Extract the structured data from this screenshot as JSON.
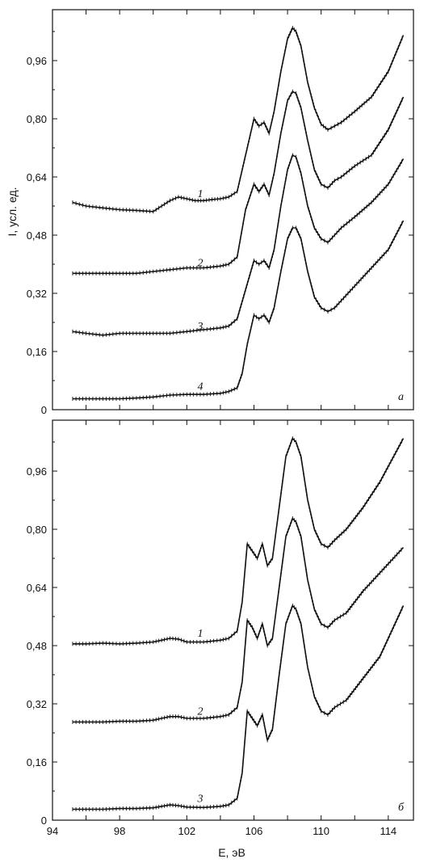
{
  "chart_data": [
    {
      "type": "line",
      "panel_label": "а",
      "ylabel": "I, усл. ед.",
      "xlim": [
        94,
        115.5
      ],
      "ylim": [
        0,
        1.1
      ],
      "yticks": [
        0,
        0.16,
        0.32,
        0.48,
        0.64,
        0.8,
        0.96
      ],
      "ytick_labels": [
        "0",
        "0,16",
        "0,32",
        "0,48",
        "0,64",
        "0,80",
        "0,96"
      ],
      "series": [
        {
          "label": "1",
          "label_pos": [
            102.8,
            0.585
          ],
          "x": [
            95.2,
            96,
            97,
            98,
            99,
            100,
            100.5,
            101,
            101.5,
            102,
            102.5,
            103,
            103.5,
            104,
            104.5,
            105,
            105.5,
            106,
            106.3,
            106.6,
            106.9,
            107.2,
            107.6,
            108,
            108.3,
            108.5,
            108.8,
            109.2,
            109.6,
            110,
            110.4,
            110.8,
            111.2,
            112,
            113,
            114,
            114.9
          ],
          "y": [
            0.57,
            0.56,
            0.555,
            0.55,
            0.548,
            0.545,
            0.56,
            0.575,
            0.585,
            0.58,
            0.575,
            0.575,
            0.578,
            0.58,
            0.585,
            0.6,
            0.7,
            0.8,
            0.78,
            0.79,
            0.76,
            0.82,
            0.93,
            1.02,
            1.05,
            1.04,
            1.0,
            0.9,
            0.83,
            0.785,
            0.77,
            0.78,
            0.79,
            0.82,
            0.86,
            0.93,
            1.03
          ]
        },
        {
          "label": "2",
          "label_pos": [
            102.8,
            0.395
          ],
          "x": [
            95.2,
            96,
            97,
            98,
            99,
            100,
            101,
            102,
            103,
            104,
            104.5,
            105,
            105.5,
            106,
            106.3,
            106.6,
            106.9,
            107.2,
            107.6,
            108,
            108.3,
            108.5,
            108.8,
            109.2,
            109.6,
            110,
            110.4,
            110.8,
            111.2,
            112,
            113,
            114,
            114.9
          ],
          "y": [
            0.375,
            0.375,
            0.375,
            0.375,
            0.375,
            0.38,
            0.385,
            0.39,
            0.39,
            0.395,
            0.4,
            0.42,
            0.55,
            0.62,
            0.6,
            0.62,
            0.59,
            0.65,
            0.76,
            0.85,
            0.875,
            0.87,
            0.83,
            0.74,
            0.66,
            0.62,
            0.61,
            0.63,
            0.64,
            0.67,
            0.7,
            0.77,
            0.86
          ]
        },
        {
          "label": "3",
          "label_pos": [
            102.8,
            0.22
          ],
          "x": [
            95.2,
            96,
            97,
            98,
            99,
            100,
            101,
            102,
            103,
            104,
            104.5,
            105,
            105.5,
            106,
            106.3,
            106.6,
            106.9,
            107.2,
            107.6,
            108,
            108.3,
            108.5,
            108.8,
            109.2,
            109.6,
            110,
            110.4,
            110.8,
            111.2,
            112,
            113,
            114,
            114.9
          ],
          "y": [
            0.215,
            0.21,
            0.205,
            0.21,
            0.21,
            0.21,
            0.21,
            0.215,
            0.22,
            0.225,
            0.23,
            0.25,
            0.33,
            0.41,
            0.4,
            0.41,
            0.39,
            0.44,
            0.56,
            0.66,
            0.7,
            0.695,
            0.65,
            0.56,
            0.5,
            0.47,
            0.46,
            0.48,
            0.5,
            0.53,
            0.57,
            0.62,
            0.69
          ]
        },
        {
          "label": "4",
          "label_pos": [
            102.8,
            0.055
          ],
          "x": [
            95.2,
            96,
            97,
            98,
            99,
            100,
            101,
            102,
            103,
            104,
            104.5,
            105,
            105.3,
            105.6,
            106,
            106.3,
            106.6,
            106.9,
            107.2,
            107.6,
            108,
            108.3,
            108.5,
            108.8,
            109.2,
            109.6,
            110,
            110.4,
            110.8,
            111.2,
            112,
            113,
            114,
            114.9
          ],
          "y": [
            0.03,
            0.03,
            0.03,
            0.03,
            0.032,
            0.035,
            0.04,
            0.042,
            0.042,
            0.045,
            0.05,
            0.06,
            0.1,
            0.18,
            0.26,
            0.25,
            0.26,
            0.24,
            0.28,
            0.38,
            0.47,
            0.5,
            0.5,
            0.47,
            0.38,
            0.31,
            0.28,
            0.27,
            0.28,
            0.3,
            0.34,
            0.39,
            0.44,
            0.52
          ]
        }
      ]
    },
    {
      "type": "line",
      "panel_label": "б",
      "xlabel": "E, эВ",
      "xlim": [
        94,
        115.5
      ],
      "ylim": [
        0,
        1.1
      ],
      "xticks": [
        94,
        96,
        98,
        100,
        102,
        104,
        106,
        108,
        110,
        112,
        114
      ],
      "xtick_labels": [
        "94",
        "",
        "98",
        "",
        "102",
        "",
        "106",
        "",
        "110",
        "",
        "114"
      ],
      "yticks": [
        0,
        0.16,
        0.32,
        0.48,
        0.64,
        0.8,
        0.96
      ],
      "ytick_labels": [
        "0",
        "0,16",
        "0,32",
        "0,48",
        "0,64",
        "0,80",
        "0,96"
      ],
      "series": [
        {
          "label": "1",
          "label_pos": [
            102.8,
            0.505
          ],
          "x": [
            95.2,
            96,
            97,
            98,
            99,
            100,
            100.5,
            101,
            101.5,
            102,
            103,
            104,
            104.5,
            105,
            105.3,
            105.6,
            105.9,
            106.2,
            106.5,
            106.8,
            107.1,
            107.5,
            107.9,
            108.3,
            108.5,
            108.8,
            109.2,
            109.6,
            110,
            110.4,
            110.8,
            111.5,
            112.5,
            113.5,
            114.9
          ],
          "y": [
            0.485,
            0.485,
            0.487,
            0.485,
            0.487,
            0.49,
            0.495,
            0.5,
            0.498,
            0.49,
            0.49,
            0.495,
            0.5,
            0.52,
            0.6,
            0.76,
            0.74,
            0.72,
            0.76,
            0.7,
            0.72,
            0.86,
            1.0,
            1.05,
            1.04,
            1.0,
            0.88,
            0.8,
            0.76,
            0.75,
            0.77,
            0.8,
            0.86,
            0.93,
            1.05
          ]
        },
        {
          "label": "2",
          "label_pos": [
            102.8,
            0.29
          ],
          "x": [
            95.2,
            96,
            97,
            98,
            99,
            100,
            100.5,
            101,
            101.5,
            102,
            103,
            104,
            104.5,
            105,
            105.3,
            105.6,
            105.9,
            106.2,
            106.5,
            106.8,
            107.1,
            107.5,
            107.9,
            108.3,
            108.5,
            108.8,
            109.2,
            109.6,
            110,
            110.4,
            110.8,
            111.5,
            112.5,
            113.5,
            114.9
          ],
          "y": [
            0.27,
            0.27,
            0.27,
            0.272,
            0.272,
            0.275,
            0.28,
            0.285,
            0.285,
            0.28,
            0.28,
            0.285,
            0.29,
            0.31,
            0.38,
            0.55,
            0.53,
            0.5,
            0.54,
            0.48,
            0.5,
            0.64,
            0.78,
            0.83,
            0.82,
            0.78,
            0.66,
            0.58,
            0.54,
            0.53,
            0.55,
            0.57,
            0.63,
            0.68,
            0.75
          ]
        },
        {
          "label": "3",
          "label_pos": [
            102.8,
            0.05
          ],
          "x": [
            95.2,
            96,
            97,
            98,
            99,
            100,
            100.5,
            101,
            101.5,
            102,
            103,
            104,
            104.5,
            105,
            105.3,
            105.6,
            105.9,
            106.2,
            106.5,
            106.8,
            107.1,
            107.5,
            107.9,
            108.3,
            108.5,
            108.8,
            109.2,
            109.6,
            110,
            110.4,
            110.8,
            111.5,
            112.5,
            113.5,
            114.9
          ],
          "y": [
            0.03,
            0.03,
            0.03,
            0.032,
            0.032,
            0.034,
            0.038,
            0.042,
            0.04,
            0.036,
            0.035,
            0.038,
            0.042,
            0.06,
            0.13,
            0.3,
            0.28,
            0.26,
            0.29,
            0.22,
            0.25,
            0.4,
            0.54,
            0.59,
            0.58,
            0.54,
            0.42,
            0.34,
            0.3,
            0.29,
            0.31,
            0.33,
            0.39,
            0.45,
            0.59
          ]
        }
      ]
    }
  ]
}
